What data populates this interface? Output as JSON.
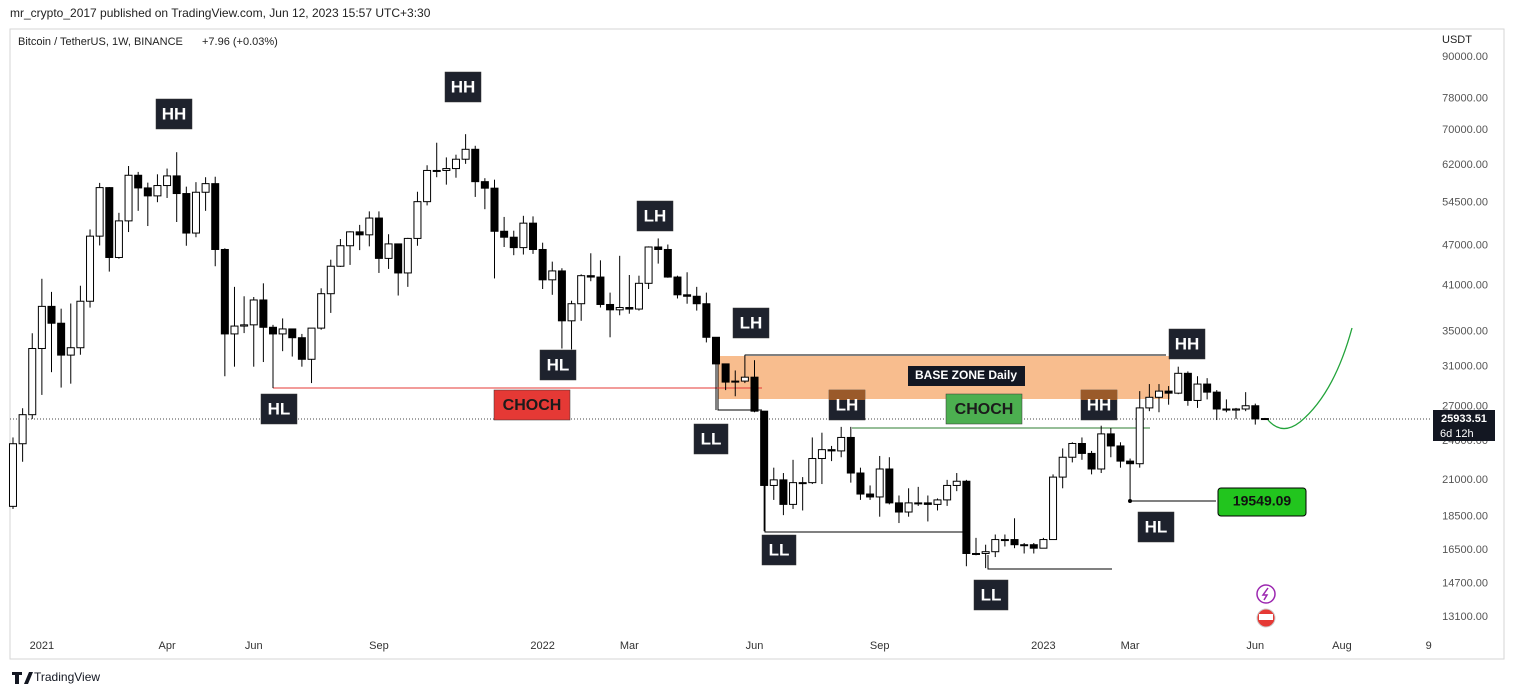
{
  "header": {
    "published": "mr_crypto_2017 published on TradingView.com, Jun 12, 2023 15:57 UTC+3:30"
  },
  "footer": {
    "brand": "TradingView"
  },
  "chart_data": {
    "type": "candlestick",
    "title": "Bitcoin / TetherUS, 1W, BINANCE",
    "change": "+7.96 (+0.03%)",
    "y_axis_label": "USDT",
    "zone_label": "BASE ZONE Daily",
    "countdown": "6d 12h",
    "log": true,
    "grid": false,
    "up_color": "#ffffff",
    "down_color": "#000000",
    "outline_color": "#000000",
    "ylim": [
      11494,
      98750
    ],
    "yticks": [
      {
        "value": 90000,
        "label": "90000.00"
      },
      {
        "value": 78000,
        "label": "78000.00"
      },
      {
        "value": 70000,
        "label": "70000.00"
      },
      {
        "value": 62000,
        "label": "62000.00"
      },
      {
        "value": 54500,
        "label": "54500.00"
      },
      {
        "value": 47000,
        "label": "47000.00"
      },
      {
        "value": 41000,
        "label": "41000.00"
      },
      {
        "value": 35000,
        "label": "35000.00"
      },
      {
        "value": 31000,
        "label": "31000.00"
      },
      {
        "value": 27000,
        "label": "27000.00"
      },
      {
        "value": 24000,
        "label": "24000.00"
      },
      {
        "value": 21000,
        "label": "21000.00"
      },
      {
        "value": 18500,
        "label": "18500.00"
      },
      {
        "value": 16500,
        "label": "16500.00"
      },
      {
        "value": 14700,
        "label": "14700.00"
      },
      {
        "value": 13100,
        "label": "13100.00"
      }
    ],
    "xlim": [
      -0.31,
      147.35
    ],
    "xticks": [
      {
        "value": 3,
        "label": "2021"
      },
      {
        "value": 16,
        "label": "Apr"
      },
      {
        "value": 25,
        "label": "Jun"
      },
      {
        "value": 38,
        "label": "Sep"
      },
      {
        "value": 55,
        "label": "2022"
      },
      {
        "value": 64,
        "label": "Mar"
      },
      {
        "value": 77,
        "label": "Jun"
      },
      {
        "value": 90,
        "label": "Sep"
      },
      {
        "value": 107,
        "label": "2023"
      },
      {
        "value": 116,
        "label": "Mar"
      },
      {
        "value": 129,
        "label": "Jun"
      },
      {
        "value": 138,
        "label": "Aug"
      },
      {
        "value": 147,
        "label": "9"
      }
    ],
    "open": [
      19170,
      23780,
      26280,
      33000,
      38150,
      36000,
      32260,
      33090,
      38830,
      48580,
      57410,
      45140,
      51200,
      59900,
      57350,
      55800,
      57820,
      59770,
      56250,
      49100,
      56500,
      58200,
      46400,
      34700,
      35650,
      35800,
      39000,
      35500,
      34700,
      35300,
      34250,
      31800,
      35400,
      39850,
      43800,
      47000,
      49300,
      48800,
      51700,
      45000,
      47300,
      42800,
      48200,
      54700,
      60900,
      60900,
      61300,
      63300,
      65500,
      58600,
      57300,
      49400,
      48400,
      46700,
      50800,
      46400,
      41800,
      43100,
      36300,
      38500,
      42400,
      42200,
      38400,
      37700,
      38000,
      37800,
      41300,
      46800,
      46400,
      42200,
      39700,
      39500,
      38500,
      34300,
      31300,
      29400,
      29500,
      29900,
      26600,
      20600,
      21000,
      19300,
      20800,
      20800,
      22600,
      23300,
      23200,
      24300,
      21500,
      20000,
      19800,
      21800,
      19400,
      18800,
      19400,
      19400,
      19300,
      19600,
      20600,
      20900,
      16300,
      16300,
      16400,
      17100,
      17100,
      16800,
      16800,
      16600,
      17100,
      21200,
      22700,
      23800,
      23000,
      21800,
      24600,
      23600,
      22400,
      22200,
      26900,
      27900,
      28500,
      28300,
      30300,
      27600,
      29200,
      28400,
      26800,
      26700,
      26800,
      27100,
      25925.55
    ],
    "high": [
      24300,
      26870,
      34780,
      41950,
      40100,
      37850,
      38530,
      40960,
      49710,
      58350,
      57530,
      52640,
      61840,
      60600,
      58400,
      60100,
      61300,
      64850,
      57600,
      58500,
      59500,
      59600,
      46600,
      40800,
      39500,
      39400,
      41300,
      35800,
      36600,
      35300,
      34700,
      35400,
      40600,
      44800,
      48100,
      49400,
      50500,
      52900,
      52900,
      48900,
      47300,
      48300,
      56600,
      62000,
      67000,
      63700,
      64300,
      69000,
      66300,
      59300,
      59000,
      51900,
      49500,
      52100,
      52000,
      47500,
      44500,
      43500,
      38900,
      42600,
      45800,
      44700,
      40000,
      45400,
      42500,
      42400,
      46900,
      48200,
      47200,
      42400,
      42900,
      40800,
      40000,
      34300,
      31300,
      30600,
      32300,
      31700,
      26600,
      21900,
      21500,
      22500,
      21200,
      24300,
      24700,
      23600,
      25200,
      25200,
      21900,
      20600,
      22800,
      22700,
      19900,
      20400,
      20500,
      19900,
      19700,
      21000,
      21500,
      21000,
      17200,
      16800,
      17400,
      17400,
      18400,
      16900,
      16900,
      17200,
      21400,
      23400,
      23900,
      24300,
      23200,
      25300,
      25100,
      23900,
      22600,
      28500,
      29200,
      29200,
      29000,
      31000,
      30500,
      30000,
      29800,
      28600,
      27700,
      26900,
      28400,
      27300,
      25990
    ],
    "low": [
      19000,
      22350,
      25900,
      28130,
      30420,
      28850,
      29240,
      32300,
      37990,
      47050,
      43000,
      44950,
      49270,
      53000,
      50300,
      54600,
      55400,
      51000,
      47000,
      48400,
      53000,
      43800,
      30000,
      31000,
      34800,
      31000,
      31500,
      28800,
      32700,
      32100,
      31000,
      29300,
      35200,
      37300,
      43700,
      44000,
      46300,
      46900,
      42800,
      43400,
      39600,
      40800,
      47000,
      54000,
      59500,
      58000,
      59400,
      62300,
      55600,
      53300,
      42000,
      46800,
      45500,
      45600,
      45700,
      40500,
      39700,
      33000,
      32900,
      36300,
      41600,
      38000,
      34300,
      37000,
      37200,
      37600,
      40500,
      44200,
      42100,
      39200,
      38500,
      37600,
      33700,
      26700,
      28600,
      28000,
      29300,
      26500,
      17600,
      19600,
      18600,
      19000,
      18900,
      20700,
      20700,
      22400,
      22700,
      20800,
      19600,
      19600,
      18500,
      19300,
      18100,
      18500,
      19200,
      18200,
      18900,
      19200,
      20200,
      15600,
      16200,
      15500,
      16100,
      16700,
      16600,
      16300,
      16300,
      16600,
      17100,
      20400,
      22300,
      22500,
      21400,
      21500,
      22700,
      21900,
      19549.09,
      21900,
      26600,
      26500,
      27200,
      28200,
      27100,
      26900,
      27700,
      25800,
      26500,
      25900,
      26600,
      25400,
      25880
    ],
    "close": [
      23780,
      26280,
      33000,
      38150,
      36000,
      32260,
      33090,
      38830,
      48580,
      57410,
      45140,
      51200,
      59900,
      57350,
      55800,
      57820,
      59770,
      56250,
      49100,
      56500,
      58200,
      46400,
      34700,
      35650,
      35800,
      39000,
      35500,
      34700,
      35300,
      34250,
      31800,
      35400,
      39850,
      43800,
      47000,
      49300,
      48800,
      51700,
      45000,
      47300,
      42800,
      48200,
      54700,
      60900,
      60900,
      61300,
      63300,
      65500,
      58600,
      57300,
      49400,
      48400,
      46700,
      50800,
      46400,
      41800,
      43100,
      36300,
      38500,
      42400,
      42200,
      38400,
      37700,
      38000,
      37800,
      41300,
      46800,
      46400,
      42200,
      39700,
      39500,
      38500,
      34300,
      31300,
      29400,
      29500,
      29900,
      26600,
      20600,
      21000,
      19300,
      20800,
      20800,
      22600,
      23300,
      23200,
      24300,
      21500,
      20000,
      19800,
      21800,
      19400,
      18800,
      19400,
      19400,
      19300,
      19600,
      20600,
      20900,
      16300,
      16300,
      16400,
      17100,
      17100,
      16800,
      16800,
      16600,
      17100,
      21200,
      22700,
      23800,
      23000,
      21800,
      24600,
      23600,
      22400,
      22200,
      26900,
      27900,
      28500,
      28300,
      30300,
      27600,
      29200,
      28400,
      26800,
      26700,
      26800,
      27100,
      25900,
      25933.51
    ],
    "annotations": [
      "HH",
      "HH",
      "LH",
      "HL",
      "LH",
      "HL",
      "CHOCH",
      "LL",
      "LH",
      "CHOCH",
      "HH",
      "HH",
      "LL",
      "LL",
      "HL"
    ]
  }
}
